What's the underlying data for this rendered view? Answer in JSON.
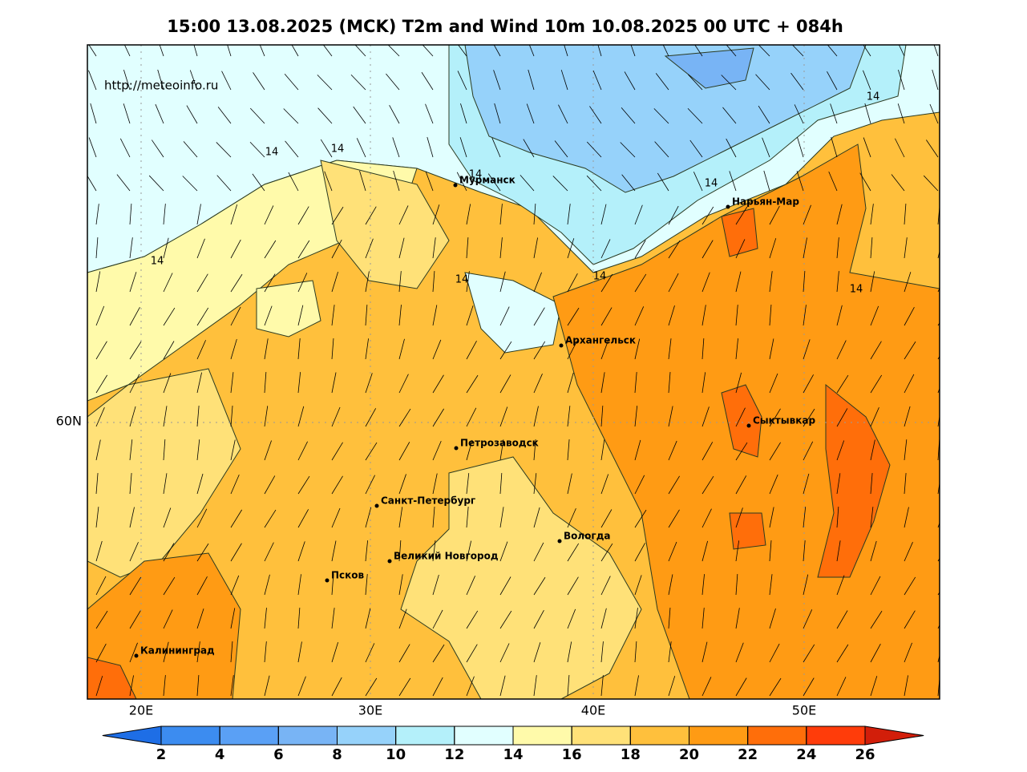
{
  "title": "15:00 13.08.2025 (MCK) T2m and Wind 10m 10.08.2025 00 UTC + 084h",
  "watermark": "http://meteoinfo.ru",
  "cities": [
    "Мурманск",
    "Нарьян-Мар",
    "Архангельск",
    "Сыктывкар",
    "Петрозаводск",
    "Санкт-Петербург",
    "Вологда",
    "Великий Новгород",
    "Псков",
    "Калининград"
  ],
  "contour_labels": [
    "14",
    "14",
    "14",
    "14",
    "14",
    "14",
    "14",
    "14",
    "14"
  ],
  "axis": {
    "lon": [
      "20E",
      "30E",
      "40E",
      "50E"
    ],
    "lat": [
      "60N"
    ]
  },
  "colorbar": {
    "colors": [
      "#1e6ee6",
      "#3c8cf0",
      "#5aa0f5",
      "#78b4f5",
      "#96d2fa",
      "#b4f0fa",
      "#e1ffff",
      "#fffaaa",
      "#ffe178",
      "#ffc03c",
      "#ff9b14",
      "#ff6e0a",
      "#ff3c0a",
      "#d21e0a"
    ],
    "ticks": [
      2,
      4,
      6,
      8,
      10,
      12,
      14,
      16,
      18,
      20,
      22,
      24,
      26
    ]
  }
}
